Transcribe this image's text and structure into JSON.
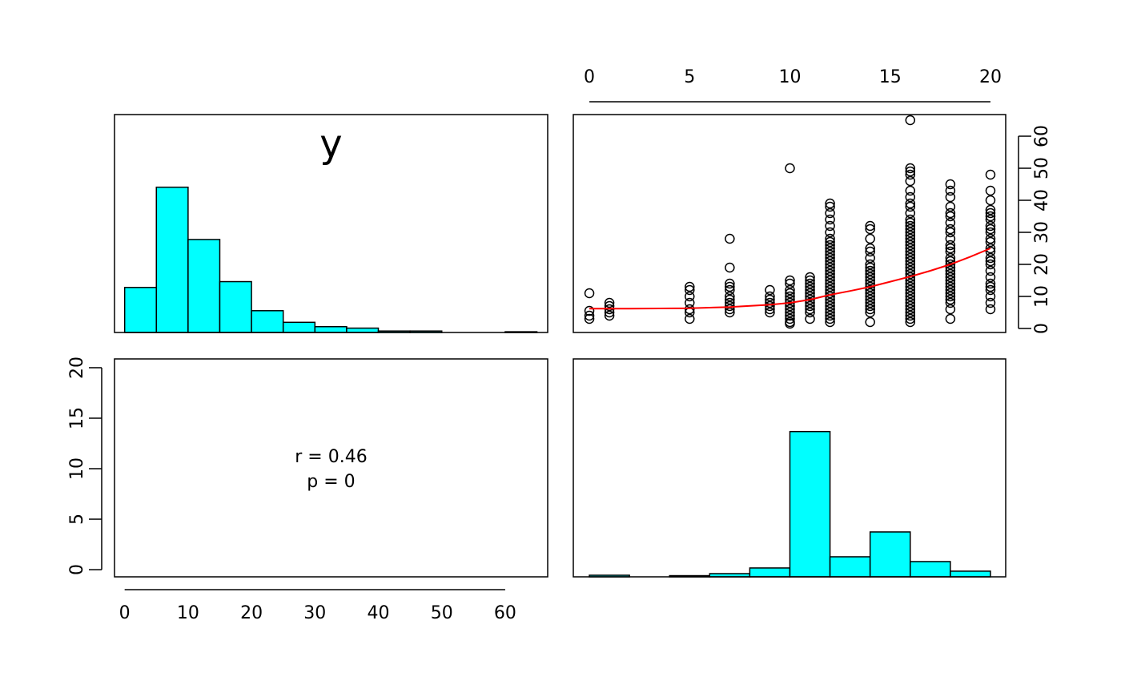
{
  "chart_data": [
    {
      "type": "histogram",
      "label": "y",
      "color": "#00ffff",
      "bins": [
        0,
        5,
        10,
        15,
        20,
        25,
        30,
        35,
        40,
        45,
        50,
        55,
        60,
        65
      ],
      "values": [
        0.31,
        1,
        0.64,
        0.35,
        0.15,
        0.07,
        0.04,
        0.03,
        0.01,
        0.01,
        0,
        0,
        0.005
      ],
      "xlim": [
        -1.6,
        66.7
      ],
      "ylim": [
        0,
        1.5
      ]
    },
    {
      "type": "scatter",
      "xaxis_side": "top",
      "yaxis_side": "right",
      "xlim": [
        -0.8,
        20.76
      ],
      "ylim": [
        -1.25,
        66.75
      ],
      "xticks": [
        0,
        5,
        10,
        15,
        20
      ],
      "yticks": [
        0,
        10,
        20,
        30,
        40,
        50,
        60
      ],
      "x": [
        0,
        0,
        0,
        0,
        1,
        1,
        1,
        1,
        1,
        5,
        5,
        5,
        5,
        5,
        5,
        5,
        7,
        7,
        7,
        7,
        7,
        7,
        7,
        7,
        7,
        7,
        7,
        9,
        9,
        9,
        9,
        9,
        9,
        9,
        10,
        10,
        10,
        10,
        10,
        10,
        10,
        10,
        10,
        10,
        10,
        10,
        10,
        10,
        10,
        11,
        11,
        11,
        11,
        11,
        11,
        11,
        11,
        11,
        11,
        11,
        11,
        11,
        12,
        12,
        12,
        12,
        12,
        12,
        12,
        12,
        12,
        12,
        12,
        12,
        12,
        12,
        12,
        12,
        12,
        12,
        12,
        12,
        12,
        12,
        12,
        12,
        12,
        12,
        12,
        12,
        12,
        12,
        12,
        12,
        12,
        14,
        14,
        14,
        14,
        14,
        14,
        14,
        14,
        14,
        14,
        14,
        14,
        14,
        14,
        14,
        14,
        14,
        14,
        14,
        14,
        14,
        14,
        14,
        16,
        16,
        16,
        16,
        16,
        16,
        16,
        16,
        16,
        16,
        16,
        16,
        16,
        16,
        16,
        16,
        16,
        16,
        16,
        16,
        16,
        16,
        16,
        16,
        16,
        16,
        16,
        16,
        16,
        16,
        16,
        16,
        16,
        16,
        16,
        16,
        16,
        16,
        16,
        16,
        16,
        16,
        16,
        18,
        18,
        18,
        18,
        18,
        18,
        18,
        18,
        18,
        18,
        18,
        18,
        18,
        18,
        18,
        18,
        18,
        18,
        18,
        18,
        18,
        18,
        18,
        18,
        18,
        18,
        18,
        18,
        18,
        18,
        20,
        20,
        20,
        20,
        20,
        20,
        20,
        20,
        20,
        20,
        20,
        20,
        20,
        20,
        20,
        20,
        20,
        20,
        20,
        20,
        20,
        20,
        20,
        20,
        20
      ],
      "y": [
        11,
        5.5,
        4,
        3,
        8,
        7,
        6,
        5,
        4,
        13,
        12,
        10,
        8,
        6,
        5,
        3,
        28,
        19,
        14,
        13,
        12,
        10,
        9,
        8,
        7,
        6,
        5,
        12,
        10,
        9,
        8,
        7,
        6,
        5,
        50,
        15,
        14,
        12,
        11,
        10,
        9,
        8,
        7,
        6,
        5,
        4,
        3,
        2,
        1.5,
        16,
        15,
        14,
        13,
        12,
        11,
        10,
        9,
        8,
        7,
        6,
        5,
        3,
        39,
        38,
        36,
        34,
        32,
        30,
        28,
        27,
        26,
        25,
        24,
        23,
        22,
        21,
        20,
        19,
        18,
        17,
        16,
        15,
        14,
        13,
        12,
        11,
        10,
        9,
        8,
        7,
        6,
        5,
        4,
        3,
        2,
        32,
        31,
        28,
        25,
        24,
        22,
        20,
        19,
        18,
        17,
        16,
        15,
        14,
        13,
        12,
        11,
        10,
        9,
        8,
        7,
        6,
        5,
        2,
        65,
        50,
        49,
        48,
        46,
        43,
        41,
        39,
        38,
        36,
        34,
        33,
        32,
        31,
        30,
        29,
        28,
        27,
        26,
        25,
        24,
        23,
        22,
        21,
        20,
        19,
        18,
        17,
        16,
        15,
        14,
        13,
        12,
        11,
        10,
        9,
        8,
        7,
        6,
        5,
        4,
        3,
        2,
        45,
        43,
        41,
        38,
        36,
        35,
        33,
        31,
        30,
        28,
        26,
        25,
        24,
        22,
        21,
        20,
        19,
        18,
        17,
        16,
        15,
        14,
        13,
        12,
        11,
        10,
        9,
        8,
        6,
        3,
        48,
        43,
        40,
        37,
        36,
        35,
        34,
        32,
        31,
        30,
        28,
        27,
        25,
        24,
        22,
        21,
        20,
        18,
        16,
        14,
        13,
        12,
        10,
        8,
        6
      ],
      "line": {
        "color": "#ff0000",
        "x": [
          0,
          2,
          5,
          7,
          9,
          10,
          11,
          12,
          13,
          14,
          15,
          16,
          17,
          18,
          19,
          20
        ],
        "y": [
          6.2,
          6.2,
          6.3,
          6.7,
          7.4,
          8,
          9,
          10.5,
          11.7,
          13,
          14.6,
          16.2,
          18,
          20,
          22.4,
          25
        ]
      }
    },
    {
      "type": "text",
      "annotations": [
        "r = 0.46",
        "p = 0"
      ],
      "xlim": [
        -1.6,
        66.7
      ],
      "ylim": [
        -0.71,
        20.87
      ],
      "xticks": [
        0,
        10,
        20,
        30,
        40,
        50,
        60
      ],
      "yticks": [
        0,
        5,
        10,
        15,
        20
      ],
      "xaxis_side": "bottom",
      "yaxis_side": "left"
    },
    {
      "type": "histogram",
      "color": "#00ffff",
      "bins": [
        0,
        2,
        4,
        6,
        8,
        10,
        12,
        14,
        16,
        18,
        20
      ],
      "values": [
        0.011,
        0,
        0.008,
        0.022,
        0.061,
        1,
        0.138,
        0.309,
        0.105,
        0.039
      ],
      "xlim": [
        -0.8,
        20.76
      ],
      "ylim": [
        0,
        1.5
      ]
    }
  ]
}
